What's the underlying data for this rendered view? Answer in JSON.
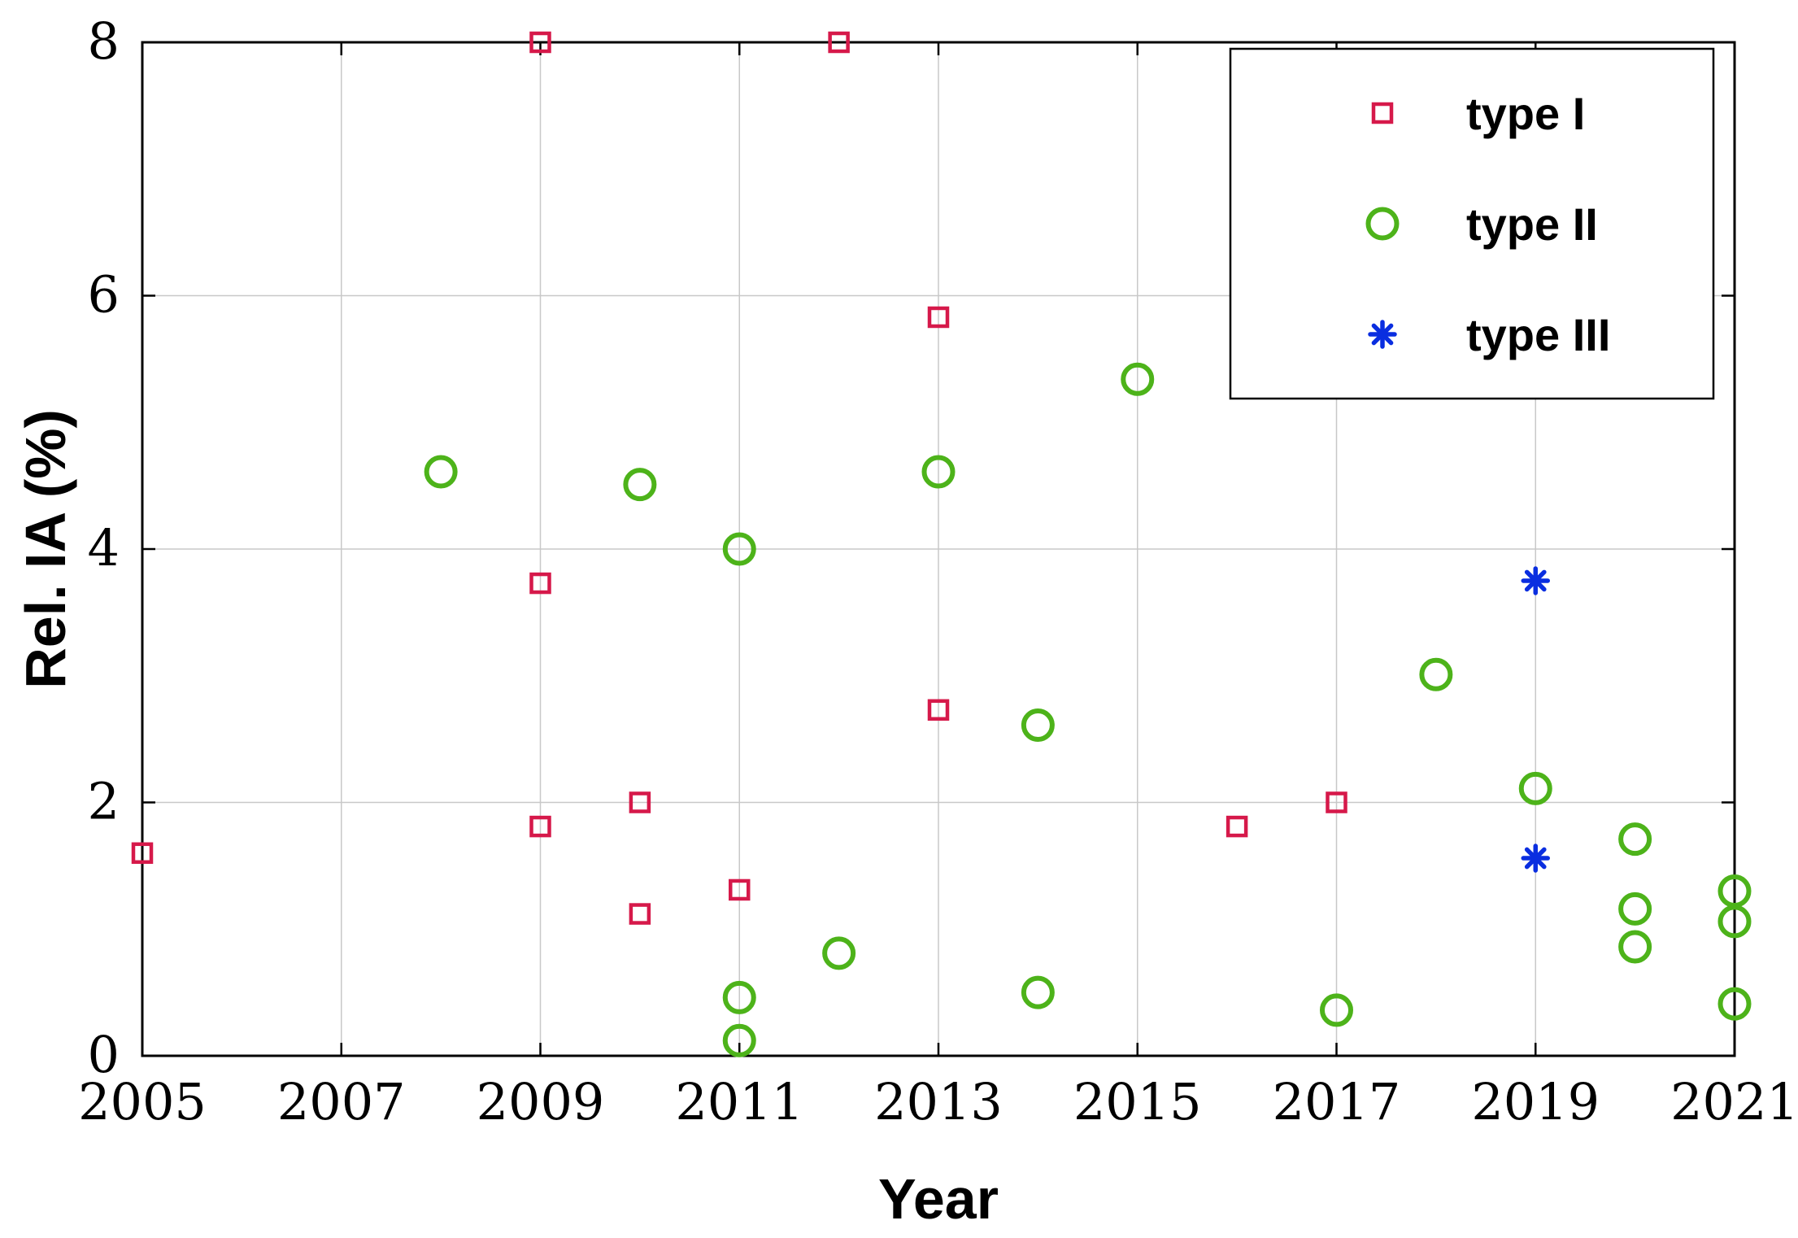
{
  "chart_data": {
    "type": "scatter",
    "xlabel": "Year",
    "ylabel": "Rel. IA (%)",
    "xlim": [
      2005,
      2021
    ],
    "ylim": [
      0,
      8
    ],
    "xticks": [
      2005,
      2007,
      2009,
      2011,
      2013,
      2015,
      2017,
      2019,
      2021
    ],
    "yticks": [
      0,
      2,
      4,
      6,
      8
    ],
    "grid": true,
    "legend_position": "top-right",
    "series": [
      {
        "name": "type I",
        "marker": "square",
        "color": "#d6194a",
        "points": [
          [
            2005,
            1.6
          ],
          [
            2009,
            8.0
          ],
          [
            2009,
            3.73
          ],
          [
            2009,
            1.81
          ],
          [
            2010,
            2.0
          ],
          [
            2010,
            1.12
          ],
          [
            2011,
            1.31
          ],
          [
            2012,
            8.0
          ],
          [
            2013,
            5.83
          ],
          [
            2013,
            2.73
          ],
          [
            2016,
            1.81
          ],
          [
            2017,
            2.0
          ]
        ]
      },
      {
        "name": "type II",
        "marker": "circle",
        "color": "#4db31a",
        "points": [
          [
            2008,
            4.61
          ],
          [
            2010,
            4.51
          ],
          [
            2011,
            4.0
          ],
          [
            2011,
            0.46
          ],
          [
            2011,
            0.12
          ],
          [
            2012,
            0.81
          ],
          [
            2013,
            4.61
          ],
          [
            2014,
            2.61
          ],
          [
            2014,
            0.5
          ],
          [
            2015,
            5.34
          ],
          [
            2017,
            0.36
          ],
          [
            2018,
            3.01
          ],
          [
            2019,
            2.11
          ],
          [
            2020,
            1.71
          ],
          [
            2020,
            1.16
          ],
          [
            2020,
            0.86
          ],
          [
            2021,
            1.3
          ],
          [
            2021,
            1.06
          ],
          [
            2021,
            0.41
          ]
        ]
      },
      {
        "name": "type III",
        "marker": "asterisk",
        "color": "#0a2ee0",
        "points": [
          [
            2019,
            3.75
          ],
          [
            2019,
            1.56
          ]
        ]
      }
    ]
  }
}
